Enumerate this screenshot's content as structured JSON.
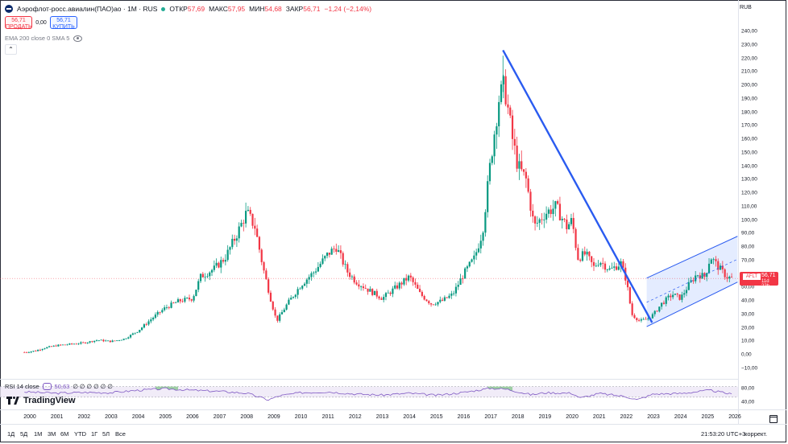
{
  "header": {
    "symbol": "Аэрофлот-росс.авиалин(ПАО)ао · 1М · RUS",
    "open_label": "ОТКР",
    "open": "57,69",
    "high_label": "МАКС",
    "high": "57,95",
    "low_label": "МИН",
    "low": "54,68",
    "close_label": "ЗАКР",
    "close": "56,71",
    "change": "−1,24 (−2,14%)"
  },
  "trade": {
    "sell_price": "56,71",
    "sell_label": "ПРОДАТЬ",
    "spread": "0,00",
    "buy_price": "56,71",
    "buy_label": "КУПИТЬ"
  },
  "indicators": {
    "ema_sma": "EMA 200 close 0 SMA 5"
  },
  "currency": "RUB",
  "price_tag": {
    "symbol": "AFLT",
    "price": "56,71",
    "time": "11d 22h"
  },
  "rsi": {
    "label": "RSI 14 close",
    "value": "50,63",
    "extra": "∅ ∅ ∅ ∅ ∅ ∅",
    "levels": [
      "80,00",
      "40,00"
    ]
  },
  "brand": "TradingView",
  "bottom": {
    "ranges": [
      "1Д",
      "5Д",
      "1М",
      "3М",
      "6М",
      "YTD",
      "1Г",
      "5Л",
      "Все"
    ],
    "clock": "21:53:20 UTC+3",
    "adjust": "коррект."
  },
  "colors": {
    "up": "#089981",
    "down": "#f23645",
    "trendline": "#2a5bf0",
    "channel_fill": "#dbe6ff",
    "rsi_line": "#7e57c2"
  },
  "chart_data": {
    "type": "candlestick",
    "yunit": "RUB",
    "ylim": [
      -10,
      240
    ],
    "y_ticks": [
      "240,00",
      "230,00",
      "220,00",
      "210,00",
      "200,00",
      "190,00",
      "180,00",
      "170,00",
      "160,00",
      "150,00",
      "140,00",
      "130,00",
      "120,00",
      "110,00",
      "100,00",
      "90,00",
      "80,00",
      "70,00",
      "60,00",
      "50,00",
      "40,00",
      "30,00",
      "20,00",
      "10,00",
      "0,00",
      "−10,00"
    ],
    "x_ticks": [
      "2000",
      "2001",
      "2002",
      "2003",
      "2004",
      "2005",
      "2006",
      "2007",
      "2008",
      "2009",
      "2010",
      "2011",
      "2012",
      "2013",
      "2014",
      "2015",
      "2016",
      "2017",
      "2018",
      "2019",
      "2020",
      "2021",
      "2022",
      "2023",
      "2024",
      "2025",
      "2026"
    ],
    "xlim": [
      1999.75,
      2026.3
    ],
    "close_path": [
      [
        1999.8,
        2
      ],
      [
        2000.2,
        3
      ],
      [
        2000.5,
        5
      ],
      [
        2001,
        7
      ],
      [
        2001.5,
        8
      ],
      [
        2002,
        9
      ],
      [
        2002.5,
        11
      ],
      [
        2003,
        10
      ],
      [
        2003.5,
        12
      ],
      [
        2004,
        18
      ],
      [
        2004.5,
        27
      ],
      [
        2005,
        35
      ],
      [
        2005.5,
        40
      ],
      [
        2006,
        42
      ],
      [
        2006.3,
        58
      ],
      [
        2006.8,
        64
      ],
      [
        2007.2,
        72
      ],
      [
        2007.6,
        88
      ],
      [
        2008.0,
        106
      ],
      [
        2008.3,
        95
      ],
      [
        2008.6,
        65
      ],
      [
        2008.9,
        40
      ],
      [
        2009.1,
        25
      ],
      [
        2009.5,
        38
      ],
      [
        2010,
        52
      ],
      [
        2010.5,
        62
      ],
      [
        2011,
        75
      ],
      [
        2011.3,
        80
      ],
      [
        2011.7,
        62
      ],
      [
        2012,
        55
      ],
      [
        2012.5,
        48
      ],
      [
        2013,
        42
      ],
      [
        2013.5,
        50
      ],
      [
        2014,
        58
      ],
      [
        2014.4,
        45
      ],
      [
        2014.8,
        38
      ],
      [
        2015.2,
        40
      ],
      [
        2015.6,
        45
      ],
      [
        2016,
        60
      ],
      [
        2016.4,
        72
      ],
      [
        2016.7,
        92
      ],
      [
        2017,
        145
      ],
      [
        2017.3,
        190
      ],
      [
        2017.5,
        200
      ],
      [
        2017.8,
        160
      ],
      [
        2018,
        140
      ],
      [
        2018.3,
        130
      ],
      [
        2018.6,
        95
      ],
      [
        2019,
        105
      ],
      [
        2019.4,
        110
      ],
      [
        2019.8,
        95
      ],
      [
        2020,
        100
      ],
      [
        2020.2,
        72
      ],
      [
        2020.5,
        75
      ],
      [
        2020.8,
        65
      ],
      [
        2021,
        70
      ],
      [
        2021.4,
        63
      ],
      [
        2021.8,
        68
      ],
      [
        2022,
        55
      ],
      [
        2022.2,
        30
      ],
      [
        2022.5,
        25
      ],
      [
        2022.8,
        27
      ],
      [
        2023,
        30
      ],
      [
        2023.3,
        38
      ],
      [
        2023.7,
        45
      ],
      [
        2024,
        42
      ],
      [
        2024.3,
        52
      ],
      [
        2024.6,
        60
      ],
      [
        2024.9,
        58
      ],
      [
        2025.1,
        73
      ],
      [
        2025.4,
        65
      ],
      [
        2025.7,
        58
      ],
      [
        2025.9,
        56.71
      ]
    ],
    "high_path": [
      [
        2017.45,
        222
      ]
    ],
    "trendline": [
      [
        2017.45,
        226
      ],
      [
        2022.95,
        24
      ]
    ],
    "channel": {
      "lower": [
        [
          2022.75,
          21
        ],
        [
          2026.1,
          54
        ]
      ],
      "upper": [
        [
          2022.75,
          57
        ],
        [
          2026.1,
          88
        ]
      ],
      "mid": [
        [
          2022.75,
          39
        ],
        [
          2026.1,
          71
        ]
      ]
    },
    "last_price": 56.71,
    "rsi_series": [
      [
        1999.8,
        60
      ],
      [
        2001,
        55
      ],
      [
        2002,
        58
      ],
      [
        2003,
        57
      ],
      [
        2004,
        66
      ],
      [
        2005,
        72
      ],
      [
        2006,
        66
      ],
      [
        2007,
        62
      ],
      [
        2008,
        55
      ],
      [
        2008.8,
        30
      ],
      [
        2009.2,
        45
      ],
      [
        2010,
        57
      ],
      [
        2011,
        60
      ],
      [
        2012,
        52
      ],
      [
        2013,
        48
      ],
      [
        2014,
        55
      ],
      [
        2015,
        47
      ],
      [
        2016,
        58
      ],
      [
        2017,
        74
      ],
      [
        2017.6,
        70
      ],
      [
        2018.5,
        49
      ],
      [
        2019,
        57
      ],
      [
        2020,
        55
      ],
      [
        2020.3,
        37
      ],
      [
        2021,
        54
      ],
      [
        2022,
        42
      ],
      [
        2022.4,
        30
      ],
      [
        2023,
        52
      ],
      [
        2024,
        54
      ],
      [
        2025.1,
        66
      ],
      [
        2025.9,
        50.63
      ]
    ]
  }
}
